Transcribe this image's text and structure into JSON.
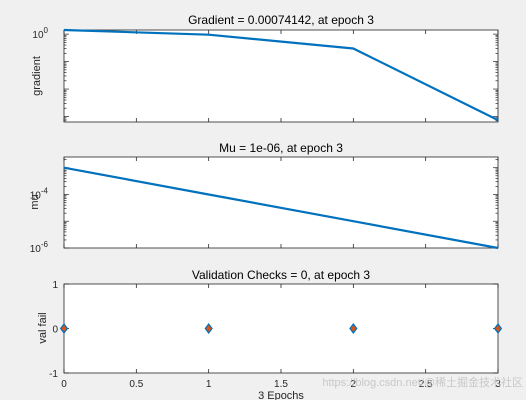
{
  "colors": {
    "figure_bg": "#f0f0f0",
    "axes_bg": "#ffffff",
    "line": "#0072bd",
    "marker_edge": "#0072bd",
    "marker_fill": "#d95319",
    "axis": "#262626"
  },
  "watermark": "https://blog.csdn.net/@稀土掘金技术社区",
  "chart_data": [
    {
      "type": "line",
      "title": "Gradient = 0.00074142, at epoch 3",
      "ylabel": "gradient",
      "xlabel": "",
      "yscale": "log",
      "xlim": [
        0,
        3
      ],
      "ylim_exp": [
        -3.2,
        0.15
      ],
      "ytick_labels": [
        {
          "label": "10",
          "sup": "0",
          "exp": 0
        }
      ],
      "series": [
        {
          "x": [
            0,
            1,
            2,
            3
          ],
          "y": [
            1.5,
            0.95,
            0.3,
            0.00074142
          ]
        }
      ],
      "grid": false
    },
    {
      "type": "line",
      "title": "Mu = 1e-06, at epoch 3",
      "ylabel": "mu",
      "xlabel": "",
      "yscale": "log",
      "xlim": [
        0,
        3
      ],
      "ylim_exp": [
        -6,
        -2.6
      ],
      "ytick_labels": [
        {
          "label": "10",
          "sup": "-4",
          "exp": -4
        },
        {
          "label": "10",
          "sup": "-6",
          "exp": -6
        }
      ],
      "series": [
        {
          "x": [
            0,
            1,
            2,
            3
          ],
          "y": [
            0.001,
            0.0001,
            1e-05,
            1e-06
          ]
        }
      ],
      "grid": false
    },
    {
      "type": "scatter",
      "title": "Validation Checks = 0, at epoch 3",
      "ylabel": "val fail",
      "xlabel": "3 Epochs",
      "yscale": "linear",
      "xlim": [
        0,
        3
      ],
      "ylim": [
        -1,
        1
      ],
      "yticks": [
        -1,
        0,
        1
      ],
      "xticks": [
        0,
        0.5,
        1,
        1.5,
        2,
        2.5,
        3
      ],
      "xtick_labels": [
        "0",
        "0.5",
        "1",
        "1.5",
        "2",
        "2.5",
        "3"
      ],
      "series": [
        {
          "x": [
            0,
            1,
            2,
            3
          ],
          "y": [
            0,
            0,
            0,
            0
          ]
        }
      ],
      "marker": "diamond",
      "grid": false
    }
  ]
}
